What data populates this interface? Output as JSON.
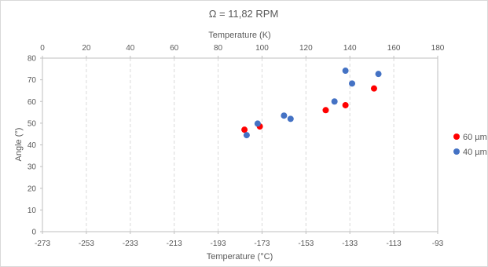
{
  "chart_data": {
    "type": "scatter",
    "title": "Ω = 11,82 RPM",
    "x_top_label": "Temperature (K)",
    "x_top_ticks": [
      "0",
      "20",
      "40",
      "60",
      "80",
      "100",
      "120",
      "140",
      "160",
      "180"
    ],
    "x_top_range": [
      0,
      180
    ],
    "xlabel": "Temperature (°C)",
    "x_bottom_ticks": [
      "-273",
      "-253",
      "-233",
      "-213",
      "-193",
      "-173",
      "-153",
      "-133",
      "-113",
      "-93"
    ],
    "x_bottom_range": [
      -273,
      -93
    ],
    "ylabel": "Angle (°)",
    "y_ticks": [
      "0",
      "10",
      "20",
      "30",
      "40",
      "50",
      "60",
      "70",
      "80"
    ],
    "ylim": [
      0,
      80
    ],
    "grid": "vertical-dashed",
    "legend_position": "right",
    "series": [
      {
        "name": "60 µm",
        "color": "#ff0000",
        "points": [
          {
            "x": 92,
            "y": 47
          },
          {
            "x": 99,
            "y": 48.5
          },
          {
            "x": 129,
            "y": 56
          },
          {
            "x": 138,
            "y": 58.3
          },
          {
            "x": 151,
            "y": 66
          }
        ]
      },
      {
        "name": "40 µm",
        "color": "#4472c4",
        "points": [
          {
            "x": 93,
            "y": 44.5
          },
          {
            "x": 98,
            "y": 49.8
          },
          {
            "x": 110,
            "y": 53.5
          },
          {
            "x": 113,
            "y": 52
          },
          {
            "x": 133,
            "y": 60
          },
          {
            "x": 138,
            "y": 74.2
          },
          {
            "x": 141,
            "y": 68.3
          },
          {
            "x": 153,
            "y": 72.7
          }
        ]
      }
    ]
  }
}
